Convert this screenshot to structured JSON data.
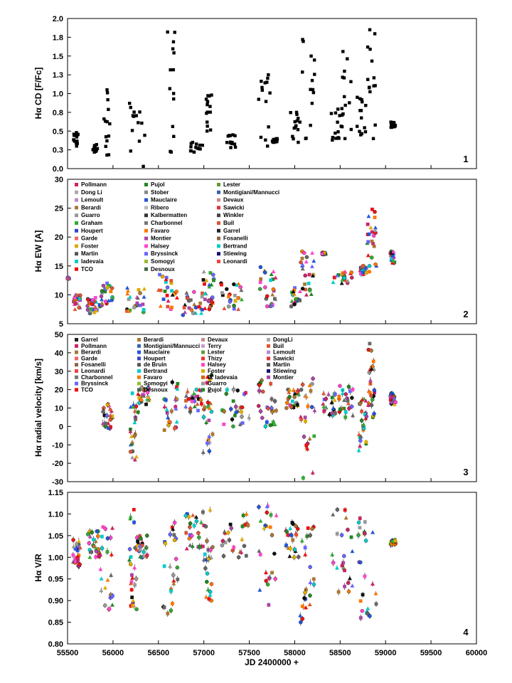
{
  "figure": {
    "x_axis_label": "JD 2400000 +",
    "x_ticks": [
      "55500",
      "56000",
      "56500",
      "57000",
      "57500",
      "58000",
      "58500",
      "59000",
      "59500",
      "60000"
    ],
    "x_range": [
      55500,
      60000
    ]
  },
  "legend_colors": {
    "Pollmann": "#cc2266",
    "Dong Li": "#aaaaaa",
    "Lemoult": "#bb88cc",
    "Berardi": "#aa7733",
    "Guarro": "#999999",
    "Graham": "#33aa33",
    "Houpert": "#3344cc",
    "Garde": "#ee6666",
    "Foster": "#ddaa00",
    "Martin": "#555555",
    "Iadevaia": "#00cccc",
    "TCO": "#ee1111",
    "Pujol": "#228822",
    "Stober": "#888888",
    "Mauclaire": "#2255dd",
    "Ribero": "#bbbbbb",
    "Kalbermatten": "#333333",
    "Charbonnel": "#777777",
    "Favaro": "#ff7700",
    "Montier": "#aa44aa",
    "Halsey": "#ff44cc",
    "Bryssinck": "#6666ff",
    "Somogyi": "#99bb33",
    "Desnoux": "#446644",
    "Lester": "#669933",
    "Montigiani/Mannucci": "#3366aa",
    "Devaux": "#cc8888",
    "Sawicki": "#dd3333",
    "Winkler": "#444444",
    "Buil": "#dd5533",
    "Garrel": "#222222",
    "Fosanelli": "#886644",
    "Bertrand": "#00cccc",
    "Stiewing": "#111177",
    "Leonardi": "#ee4444",
    "Terry": "#cc99cc",
    "DongLi": "#aaaaaa",
    "Thizy": "#ee3333",
    "de Bruin": "#555555",
    "D. Iadevaia": "#cc6600"
  },
  "chart_data": [
    {
      "id": 1,
      "type": "scatter",
      "panel_label": "1",
      "ylabel": "Hα CD [F/Fc]",
      "ylim": [
        0.0,
        2.0
      ],
      "yticks": [
        "0.0",
        "0.3",
        "0.5",
        "0.8",
        "1.0",
        "1.3",
        "1.5",
        "1.8",
        "2.0"
      ],
      "clusters": [
        {
          "x_start": 55560,
          "x_end": 55620,
          "y_min": 0.3,
          "y_max": 0.48
        },
        {
          "x_start": 55770,
          "x_end": 55830,
          "y_min": 0.22,
          "y_max": 0.32
        },
        {
          "x_start": 55900,
          "x_end": 55980,
          "y_min": 0.18,
          "y_max": 1.05
        },
        {
          "x_start": 56180,
          "x_end": 56350,
          "y_min": 0.03,
          "y_max": 0.87
        },
        {
          "x_start": 56600,
          "x_end": 56700,
          "y_min": 0.22,
          "y_max": 1.82
        },
        {
          "x_start": 56840,
          "x_end": 56990,
          "y_min": 0.22,
          "y_max": 0.35
        },
        {
          "x_start": 57020,
          "x_end": 57090,
          "y_min": 0.5,
          "y_max": 0.98
        },
        {
          "x_start": 57250,
          "x_end": 57350,
          "y_min": 0.28,
          "y_max": 0.45
        },
        {
          "x_start": 57600,
          "x_end": 57740,
          "y_min": 0.3,
          "y_max": 1.25
        },
        {
          "x_start": 57750,
          "x_end": 57820,
          "y_min": 0.35,
          "y_max": 0.4
        },
        {
          "x_start": 57950,
          "x_end": 58060,
          "y_min": 0.35,
          "y_max": 0.75
        },
        {
          "x_start": 58080,
          "x_end": 58220,
          "y_min": 0.4,
          "y_max": 1.72
        },
        {
          "x_start": 58400,
          "x_end": 58520,
          "y_min": 0.38,
          "y_max": 0.8
        },
        {
          "x_start": 58520,
          "x_end": 58640,
          "y_min": 0.4,
          "y_max": 1.56
        },
        {
          "x_start": 58680,
          "x_end": 58790,
          "y_min": 0.45,
          "y_max": 0.95
        },
        {
          "x_start": 58790,
          "x_end": 58890,
          "y_min": 0.4,
          "y_max": 1.85
        },
        {
          "x_start": 59050,
          "x_end": 59110,
          "y_min": 0.55,
          "y_max": 0.62
        }
      ]
    },
    {
      "id": 2,
      "type": "scatter",
      "panel_label": "2",
      "ylabel": "Hα EW [A]",
      "ylim": [
        5,
        30
      ],
      "yticks": [
        "5",
        "10",
        "15",
        "20",
        "25",
        "30"
      ],
      "legend": [
        "Pollmann",
        "Dong Li",
        "Lemoult",
        "Berardi",
        "Guarro",
        "Graham",
        "Houpert",
        "Garde",
        "Foster",
        "Martin",
        "Iadevaia",
        "TCO",
        "Pujol",
        "Stober",
        "Mauclaire",
        "Ribero",
        "Kalbermatten",
        "Charbonnel",
        "Favaro",
        "Montier",
        "Halsey",
        "Bryssinck",
        "Somogyi",
        "Desnoux",
        "Lester",
        "Montigiani/Mannucci",
        "Devaux",
        "Sawicki",
        "Winkler",
        "Buil",
        "Garrel",
        "Fosanelli",
        "Bertrand",
        "Stiewing",
        "Leonardi"
      ],
      "clusters": [
        {
          "x_start": 55500,
          "x_end": 55520,
          "y_min": 12.8,
          "y_max": 13.0
        },
        {
          "x_start": 55560,
          "x_end": 55640,
          "y_min": 7.5,
          "y_max": 10.0
        },
        {
          "x_start": 55720,
          "x_end": 55830,
          "y_min": 6.8,
          "y_max": 9.5
        },
        {
          "x_start": 55850,
          "x_end": 56000,
          "y_min": 8.0,
          "y_max": 12.0
        },
        {
          "x_start": 56150,
          "x_end": 56350,
          "y_min": 7.0,
          "y_max": 11.2
        },
        {
          "x_start": 56500,
          "x_end": 56720,
          "y_min": 7.5,
          "y_max": 13.5
        },
        {
          "x_start": 56750,
          "x_end": 56990,
          "y_min": 6.5,
          "y_max": 10.5
        },
        {
          "x_start": 56990,
          "x_end": 57120,
          "y_min": 7.5,
          "y_max": 14.0
        },
        {
          "x_start": 57180,
          "x_end": 57420,
          "y_min": 7.5,
          "y_max": 12.0
        },
        {
          "x_start": 57600,
          "x_end": 57800,
          "y_min": 8.0,
          "y_max": 14.8
        },
        {
          "x_start": 57950,
          "x_end": 58060,
          "y_min": 8.0,
          "y_max": 11.2
        },
        {
          "x_start": 58060,
          "x_end": 58220,
          "y_min": 10.0,
          "y_max": 17.5
        },
        {
          "x_start": 58300,
          "x_end": 58340,
          "y_min": 17.0,
          "y_max": 17.3
        },
        {
          "x_start": 58420,
          "x_end": 58640,
          "y_min": 12.0,
          "y_max": 14.0
        },
        {
          "x_start": 58720,
          "x_end": 58790,
          "y_min": 13.5,
          "y_max": 15.0
        },
        {
          "x_start": 58790,
          "x_end": 58900,
          "y_min": 14.0,
          "y_max": 24.8
        },
        {
          "x_start": 59050,
          "x_end": 59100,
          "y_min": 15.5,
          "y_max": 17.5
        }
      ]
    },
    {
      "id": 3,
      "type": "scatter",
      "panel_label": "3",
      "ylabel": "Hα radial velocity [km/s]",
      "ylim": [
        -30,
        50
      ],
      "yticks": [
        "-30",
        "-20",
        "-10",
        "0",
        "10",
        "20",
        "30",
        "40",
        "50"
      ],
      "legend": [
        "Garrel",
        "Pollmann",
        "Berardi",
        "Garde",
        "Fosanelli",
        "Leonardi",
        "Charbonnel",
        "Bryssinck",
        "TCO",
        "Berardi",
        "Montigiani/Mannucci",
        "Mauclaire",
        "Houpert",
        "de Bruin",
        "Bertrand",
        "Favaro",
        "Somogyi",
        "Desnoux",
        "Devaux",
        "Terry",
        "Lester",
        "Thizy",
        "Halsey",
        "Foster",
        "D. Iadevaia",
        "Guarro",
        "Pujol",
        "DongLi",
        "Buil",
        "Lemoult",
        "Sawicki",
        "Martin",
        "Stiewing",
        "Montier"
      ],
      "clusters": [
        {
          "x_start": 55880,
          "x_end": 56000,
          "y_min": -1.0,
          "y_max": 12.0
        },
        {
          "x_start": 56180,
          "x_end": 56280,
          "y_min": -18.0,
          "y_max": 18.0
        },
        {
          "x_start": 56280,
          "x_end": 56400,
          "y_min": 12.0,
          "y_max": 21.0
        },
        {
          "x_start": 56550,
          "x_end": 56720,
          "y_min": -2.0,
          "y_max": 24.0
        },
        {
          "x_start": 56800,
          "x_end": 56990,
          "y_min": 8.0,
          "y_max": 20.0
        },
        {
          "x_start": 56990,
          "x_end": 57100,
          "y_min": -14.0,
          "y_max": 28.0
        },
        {
          "x_start": 57200,
          "x_end": 57500,
          "y_min": 0.0,
          "y_max": 20.0
        },
        {
          "x_start": 57600,
          "x_end": 57800,
          "y_min": 0.0,
          "y_max": 25.0
        },
        {
          "x_start": 57900,
          "x_end": 58060,
          "y_min": 10.0,
          "y_max": 20.0
        },
        {
          "x_start": 58060,
          "x_end": 58220,
          "y_min": -28.0,
          "y_max": 26.0
        },
        {
          "x_start": 58300,
          "x_end": 58450,
          "y_min": 6.0,
          "y_max": 18.0
        },
        {
          "x_start": 58480,
          "x_end": 58640,
          "y_min": 5.0,
          "y_max": 22.0
        },
        {
          "x_start": 58700,
          "x_end": 58800,
          "y_min": -13.0,
          "y_max": 15.0
        },
        {
          "x_start": 58800,
          "x_end": 58880,
          "y_min": 5.0,
          "y_max": 45.0
        },
        {
          "x_start": 59050,
          "x_end": 59110,
          "y_min": 12.0,
          "y_max": 18.0
        }
      ]
    },
    {
      "id": 4,
      "type": "scatter",
      "panel_label": "4",
      "ylabel": "Hα V/R",
      "xlabel": "JD 2400000 +",
      "ylim": [
        0.8,
        1.15
      ],
      "yticks": [
        "0.80",
        "0.85",
        "0.90",
        "0.95",
        "1.00",
        "1.05",
        "1.10",
        "1.15"
      ],
      "clusters": [
        {
          "x_start": 55560,
          "x_end": 55640,
          "y_min": 0.98,
          "y_max": 1.04
        },
        {
          "x_start": 55720,
          "x_end": 55860,
          "y_min": 1.0,
          "y_max": 1.06
        },
        {
          "x_start": 55860,
          "x_end": 56000,
          "y_min": 0.88,
          "y_max": 1.07
        },
        {
          "x_start": 56180,
          "x_end": 56260,
          "y_min": 0.88,
          "y_max": 1.11
        },
        {
          "x_start": 56260,
          "x_end": 56400,
          "y_min": 1.0,
          "y_max": 1.05
        },
        {
          "x_start": 56550,
          "x_end": 56720,
          "y_min": 0.87,
          "y_max": 1.08
        },
        {
          "x_start": 56800,
          "x_end": 56990,
          "y_min": 1.02,
          "y_max": 1.1
        },
        {
          "x_start": 56990,
          "x_end": 57100,
          "y_min": 0.9,
          "y_max": 1.11
        },
        {
          "x_start": 57200,
          "x_end": 57500,
          "y_min": 1.0,
          "y_max": 1.1
        },
        {
          "x_start": 57600,
          "x_end": 57800,
          "y_min": 0.89,
          "y_max": 1.12
        },
        {
          "x_start": 57900,
          "x_end": 58060,
          "y_min": 1.0,
          "y_max": 1.08
        },
        {
          "x_start": 58060,
          "x_end": 58220,
          "y_min": 0.85,
          "y_max": 1.07
        },
        {
          "x_start": 58400,
          "x_end": 58640,
          "y_min": 0.92,
          "y_max": 1.11
        },
        {
          "x_start": 58700,
          "x_end": 58900,
          "y_min": 0.86,
          "y_max": 1.09
        },
        {
          "x_start": 59050,
          "x_end": 59110,
          "y_min": 1.03,
          "y_max": 1.04
        }
      ]
    }
  ]
}
